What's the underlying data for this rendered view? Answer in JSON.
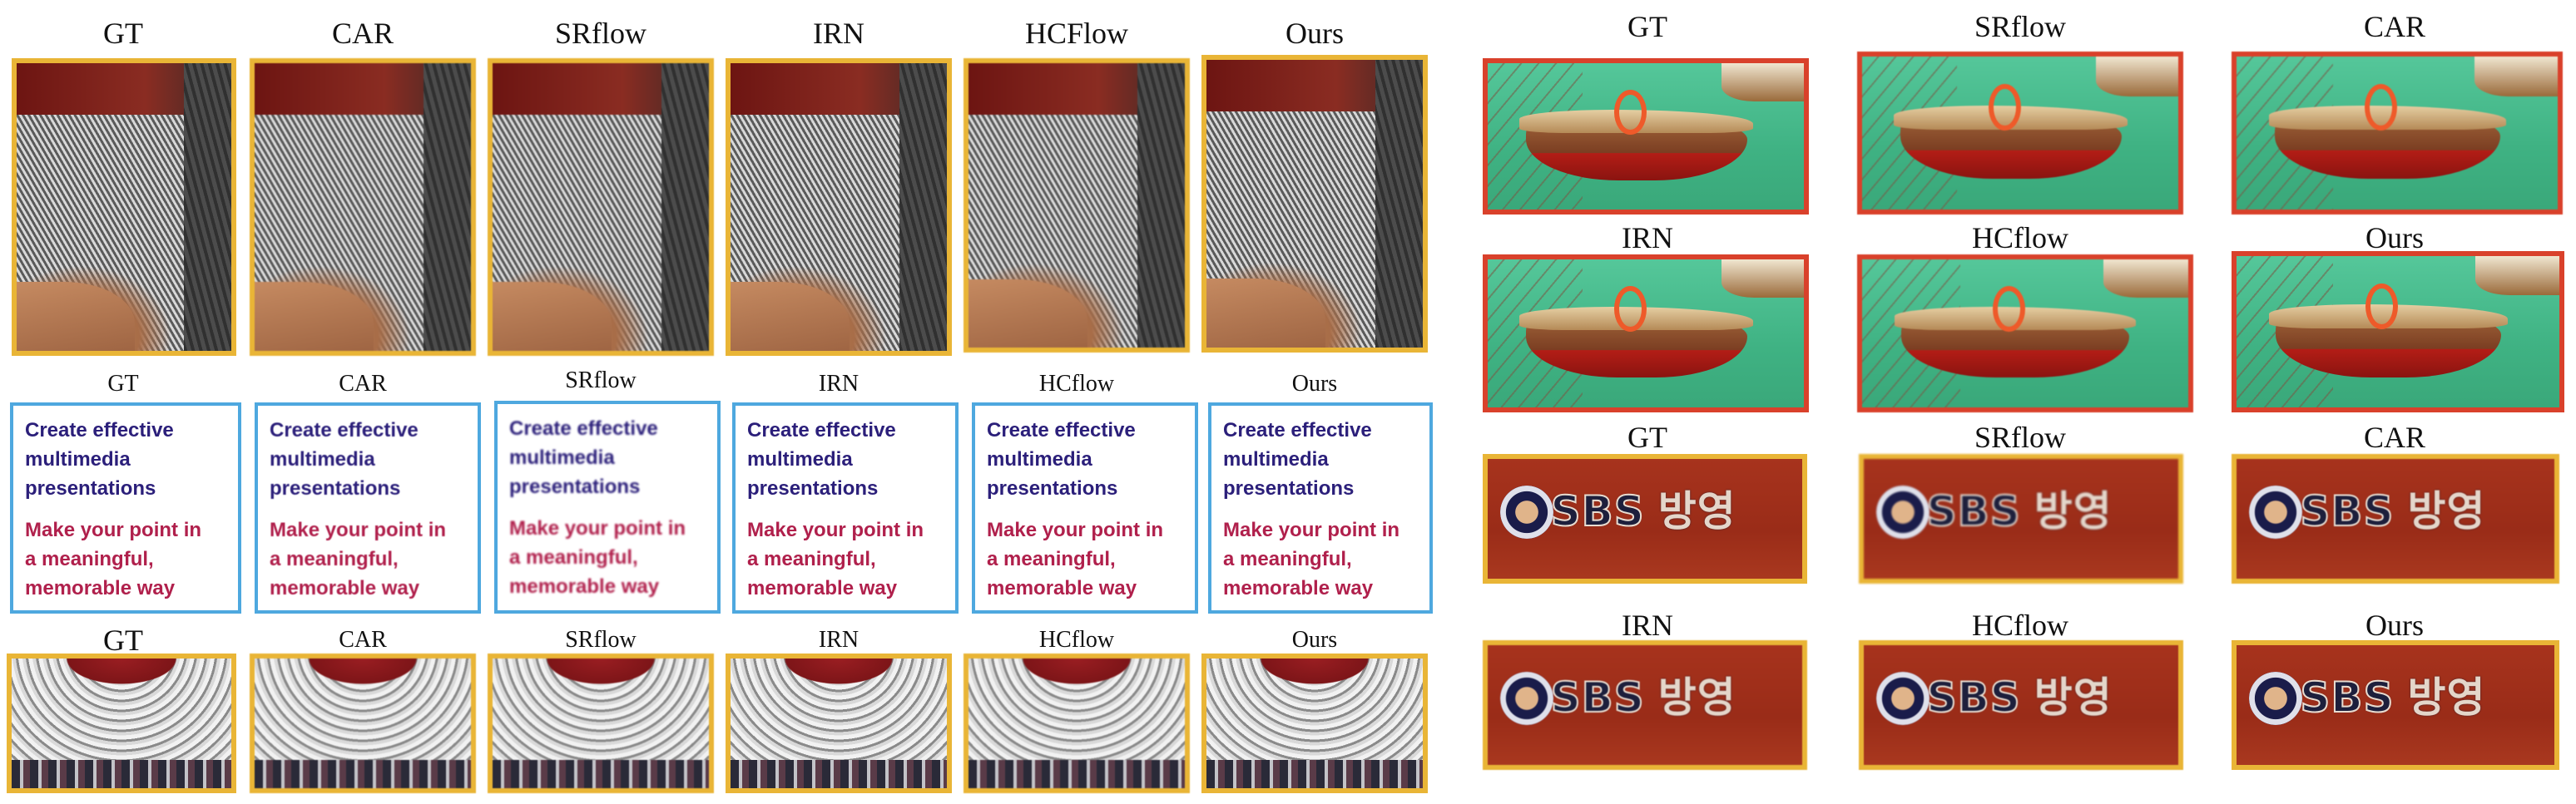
{
  "figure": {
    "sleeve_row": {
      "labels": [
        "GT",
        "CAR",
        "SRflow",
        "IRN",
        "HCFlow",
        "Ours"
      ]
    },
    "text_row": {
      "labels": [
        "GT",
        "CAR",
        "SRflow",
        "IRN",
        "HCflow",
        "Ours"
      ],
      "blue_lines": [
        "Create effective",
        "multimedia",
        "presentations"
      ],
      "red_lines": [
        "Make your point in",
        "a meaningful,",
        "memorable way"
      ]
    },
    "ornament_row": {
      "labels": [
        "GT",
        "CAR",
        "SRflow",
        "IRN",
        "HCflow",
        "Ours"
      ]
    },
    "boat_row_1": {
      "labels": [
        "GT",
        "SRflow",
        "CAR"
      ]
    },
    "boat_row_2": {
      "labels": [
        "IRN",
        "HCflow",
        "Ours"
      ]
    },
    "sbs_row_1": {
      "labels": [
        "GT",
        "SRflow",
        "CAR"
      ]
    },
    "sbs_row_2": {
      "labels": [
        "IRN",
        "HCflow",
        "Ours"
      ]
    },
    "sbs_text": {
      "latin": "SBS",
      "korean": "방영"
    }
  }
}
